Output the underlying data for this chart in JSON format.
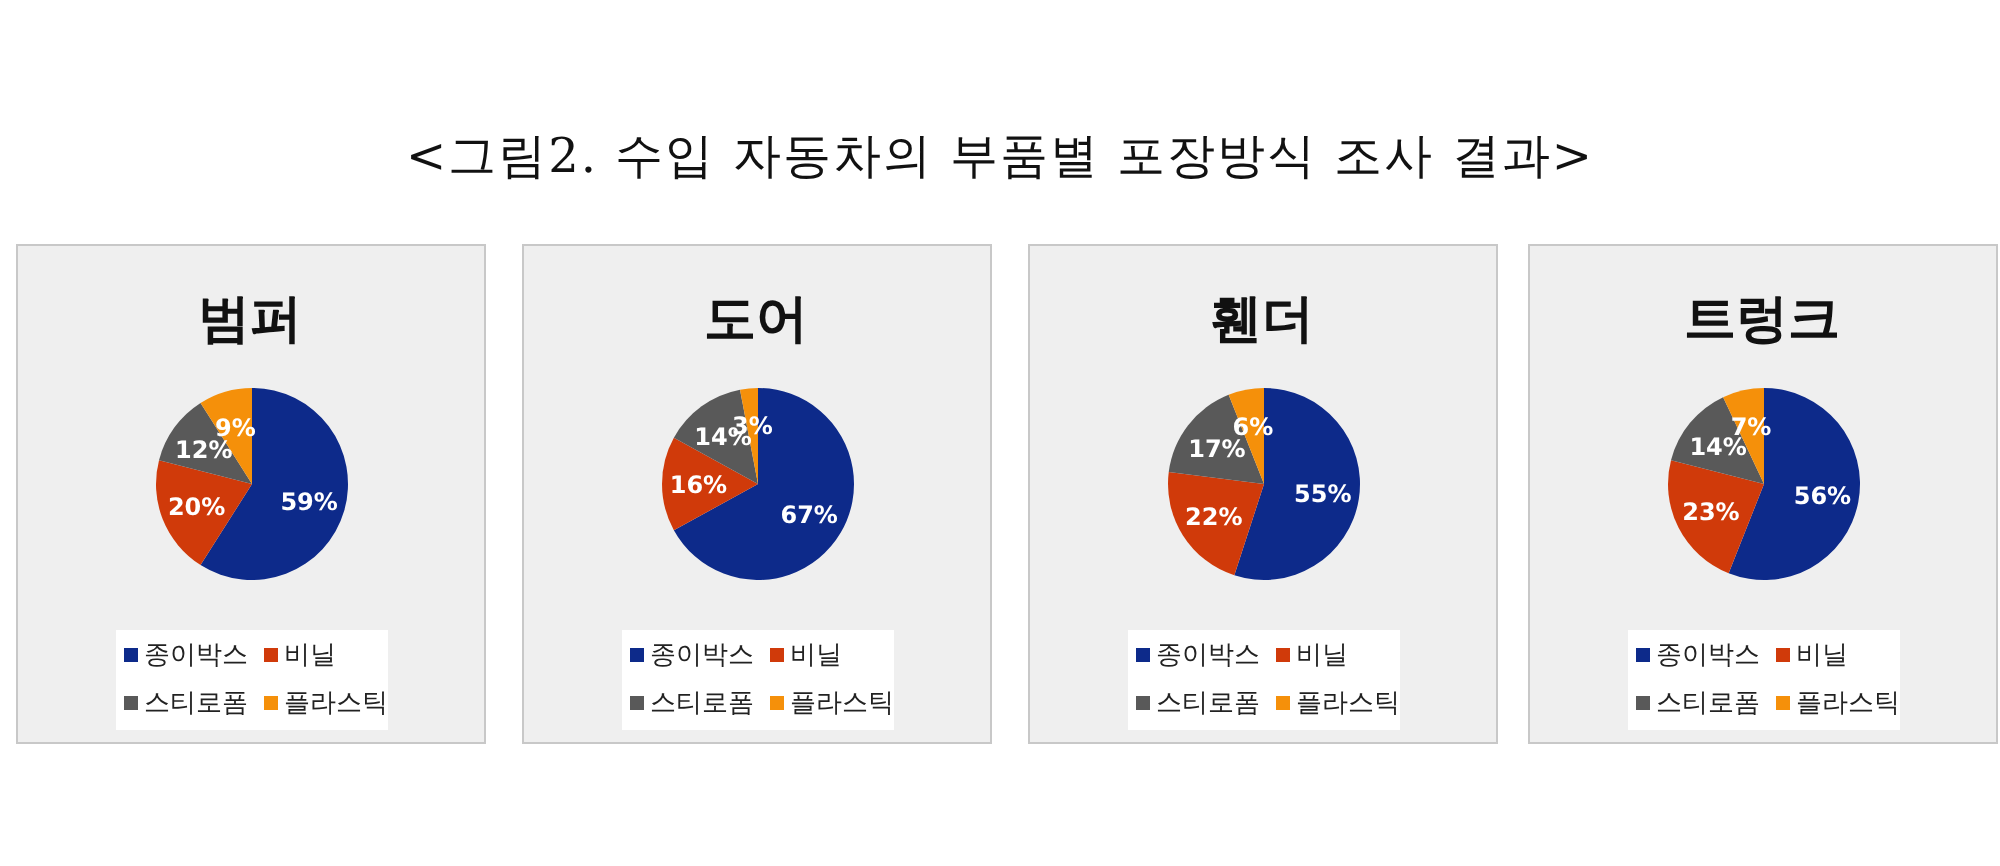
{
  "chart_data": [
    {
      "type": "pie",
      "title": "범퍼",
      "annotations": [
        "<그림2. 수입 자동차의 부품별 포장방식 조사 결과>"
      ],
      "categories": [
        "종이박스",
        "비닐",
        "스티로폼",
        "플라스틱"
      ],
      "values": [
        59,
        20,
        12,
        9
      ],
      "value_labels": [
        "59%",
        "20%",
        "12%",
        "9%"
      ],
      "colors": [
        "#0d2a8a",
        "#d03a0a",
        "#595959",
        "#f5900a"
      ],
      "legend": "bottom"
    },
    {
      "type": "pie",
      "title": "도어",
      "categories": [
        "종이박스",
        "비닐",
        "스티로폼",
        "플라스틱"
      ],
      "values": [
        67,
        16,
        14,
        3
      ],
      "value_labels": [
        "67%",
        "16%",
        "14%",
        "3%"
      ],
      "colors": [
        "#0d2a8a",
        "#d03a0a",
        "#595959",
        "#f5900a"
      ],
      "legend": "bottom"
    },
    {
      "type": "pie",
      "title": "휀더",
      "categories": [
        "종이박스",
        "비닐",
        "스티로폼",
        "플라스틱"
      ],
      "values": [
        55,
        22,
        17,
        6
      ],
      "value_labels": [
        "55%",
        "22%",
        "17%",
        "6%"
      ],
      "colors": [
        "#0d2a8a",
        "#d03a0a",
        "#595959",
        "#f5900a"
      ],
      "legend": "bottom"
    },
    {
      "type": "pie",
      "title": "트렁크",
      "categories": [
        "종이박스",
        "비닐",
        "스티로폼",
        "플라스틱"
      ],
      "values": [
        56,
        23,
        14,
        7
      ],
      "value_labels": [
        "56%",
        "23%",
        "14%",
        "7%"
      ],
      "colors": [
        "#0d2a8a",
        "#d03a0a",
        "#595959",
        "#f5900a"
      ],
      "legend": "bottom"
    }
  ]
}
